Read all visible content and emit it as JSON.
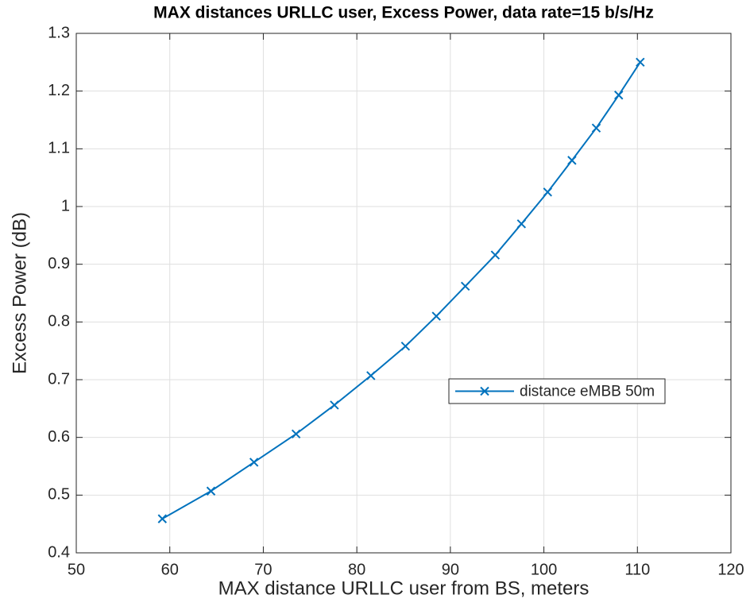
{
  "chart_data": {
    "type": "line",
    "title": "MAX distances URLLC user, Excess Power, data rate=15 b/s/Hz",
    "xlabel": "MAX distance URLLC user from BS, meters",
    "ylabel": "Excess Power (dB)",
    "x": [
      59.2,
      64.4,
      69.0,
      73.5,
      77.6,
      81.5,
      85.2,
      88.5,
      91.6,
      94.8,
      97.6,
      100.4,
      103.0,
      105.6,
      108.0,
      110.3
    ],
    "series": [
      {
        "name": "distance eMBB 50m",
        "color": "#0072bd",
        "values": [
          0.459,
          0.507,
          0.557,
          0.606,
          0.656,
          0.707,
          0.758,
          0.81,
          0.862,
          0.916,
          0.97,
          1.025,
          1.08,
          1.136,
          1.193,
          1.25
        ]
      }
    ],
    "xlim": [
      50,
      120
    ],
    "xticks": [
      50,
      60,
      70,
      80,
      90,
      100,
      110,
      120
    ],
    "ylim": [
      0.4,
      1.3
    ],
    "yticks": [
      0.4,
      0.5,
      0.6,
      0.7,
      0.8,
      0.9,
      1,
      1.1,
      1.2,
      1.3
    ],
    "grid": true,
    "legend": "east"
  }
}
